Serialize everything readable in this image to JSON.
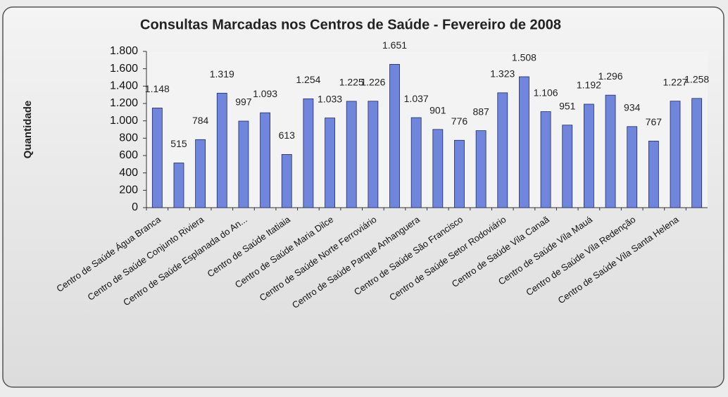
{
  "chart_data": {
    "type": "bar",
    "title": "Consultas Marcadas nos Centros de Saúde - Fevereiro de 2008",
    "y_label": "Quantidade",
    "categories": [
      "Centro de Saúde Água Branca",
      null,
      "Centro de Saúde Conjunto Riviera",
      null,
      "Centro de Saúde Esplanada do An...",
      null,
      "Centro de Saúde Itatiaia",
      null,
      "Centro de Saúde Maria Dilce",
      null,
      "Centro de Saúde Norte Ferroviário",
      null,
      "Centro de Saúde Parque Anhanguera",
      null,
      "Centro de Saúde São Francisco",
      null,
      "Centro de Saúde Setor Rodoviário",
      null,
      "Centro de Saúde Vila Canaã",
      null,
      "Centro de Saúde Vila Mauá",
      null,
      "Centro de Saúde Vila Redenção",
      null,
      "Centro de Saúde Vila Santa Helena",
      null
    ],
    "values": [
      1148,
      515,
      784,
      1319,
      997,
      1093,
      613,
      1254,
      1033,
      1225,
      1226,
      1651,
      1037,
      901,
      776,
      887,
      1323,
      1508,
      1106,
      951,
      1192,
      1296,
      934,
      767,
      1227,
      1258
    ],
    "value_labels": [
      "1.148",
      "515",
      "784",
      "1.319",
      "997",
      "1.093",
      "613",
      "1.254",
      "1.033",
      "1.225",
      "1.226",
      "1.651",
      "1.037",
      "901",
      "776",
      "887",
      "1.323",
      "1.508",
      "1.106",
      "951",
      "1.192",
      "1.296",
      "934",
      "767",
      "1.227",
      "1.258"
    ],
    "color": "#6f86dc",
    "ylim": [
      0,
      1800
    ],
    "yticks": [
      0,
      200,
      400,
      600,
      800,
      {
        "value": 1000,
        "label": "1.000"
      },
      {
        "value": 1200,
        "label": "1.200"
      },
      {
        "value": 1400,
        "label": "1.400"
      },
      {
        "value": 1600,
        "label": "1.600"
      },
      {
        "value": 1800,
        "label": "1.800"
      }
    ]
  }
}
